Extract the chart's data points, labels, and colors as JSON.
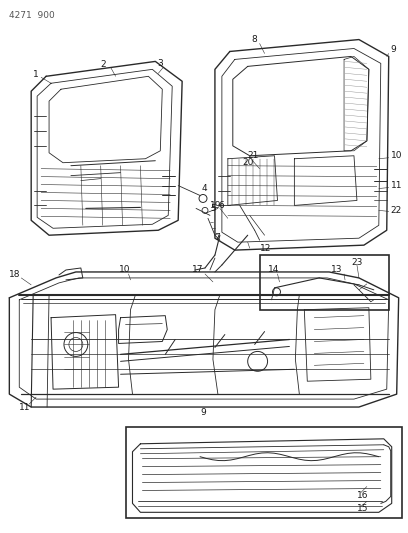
{
  "title": "4271  900",
  "bg_color": "#ffffff",
  "lc": "#2a2a2a",
  "tc": "#1a1a1a",
  "figsize": [
    4.08,
    5.33
  ],
  "dpi": 100
}
